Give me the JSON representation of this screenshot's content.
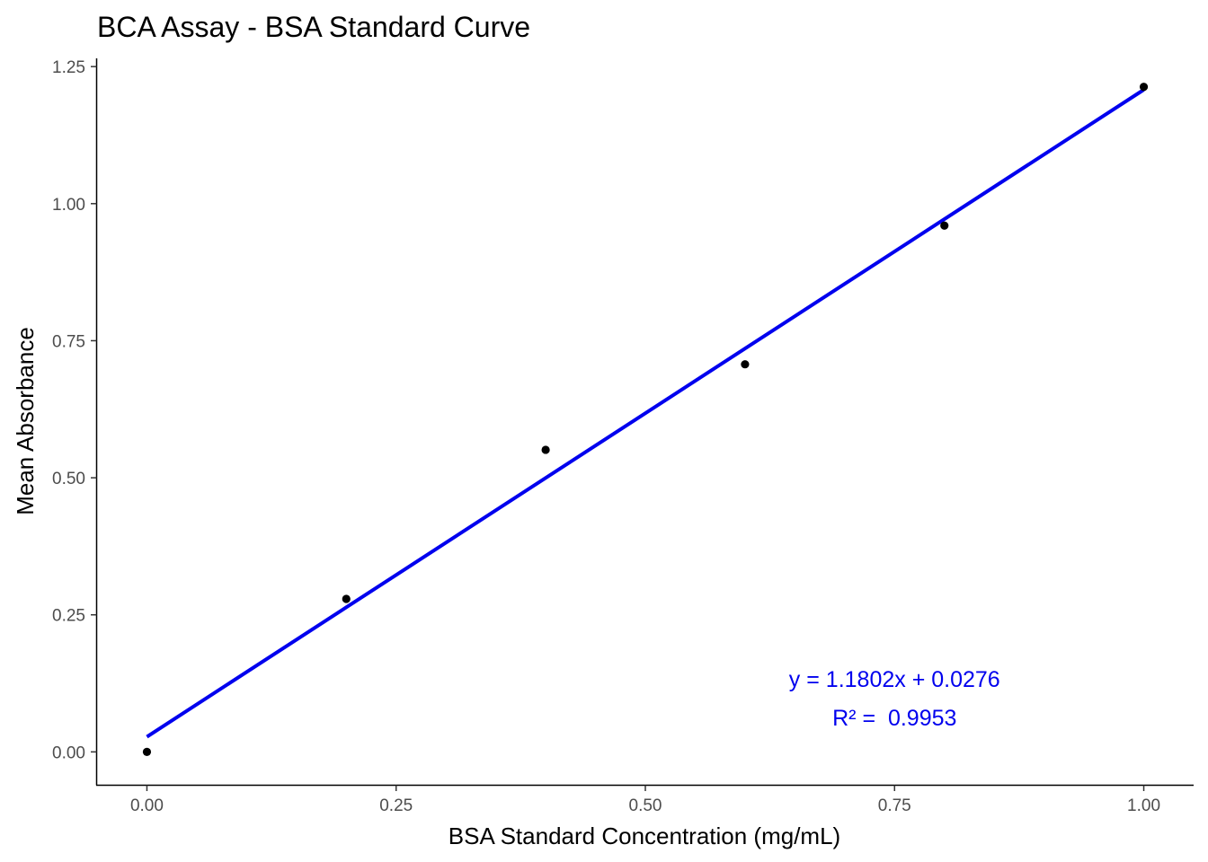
{
  "chart_data": {
    "type": "scatter",
    "title": "BCA Assay - BSA Standard Curve",
    "xlabel": "BSA Standard Concentration (mg/mL)",
    "ylabel": "Mean Absorbance",
    "xlim": [
      -0.05,
      1.05
    ],
    "ylim": [
      -0.06,
      1.265
    ],
    "x_ticks": [
      0.0,
      0.25,
      0.5,
      0.75,
      1.0
    ],
    "x_tick_labels": [
      "0.00",
      "0.25",
      "0.50",
      "0.75",
      "1.00"
    ],
    "y_ticks": [
      0.0,
      0.25,
      0.5,
      0.75,
      1.0,
      1.25
    ],
    "y_tick_labels": [
      "0.00",
      "0.25",
      "0.50",
      "0.75",
      "1.00",
      "1.25"
    ],
    "grid": false,
    "series": [
      {
        "type": "scatter",
        "color": "#000000",
        "x": [
          0.0,
          0.2,
          0.4,
          0.6,
          0.8,
          1.0
        ],
        "y": [
          0.0,
          0.279,
          0.551,
          0.707,
          0.96,
          1.213
        ]
      },
      {
        "type": "line",
        "color": "#0000ee",
        "fit": {
          "slope": 1.1802,
          "intercept": 0.0276
        },
        "x": [
          0.0,
          1.0
        ]
      }
    ],
    "annotations": {
      "equation": "y = 1.1802x + 0.0276",
      "r_squared": "R² =  0.9953",
      "x": 0.75,
      "y_equation": 0.133,
      "y_r_squared": 0.063,
      "color": "#0000ee"
    }
  }
}
